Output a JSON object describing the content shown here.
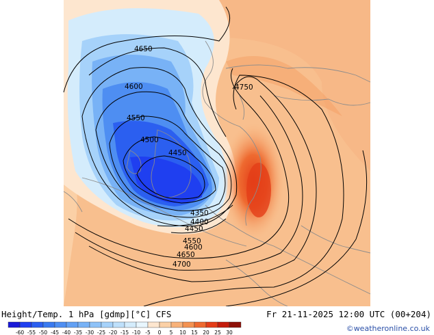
{
  "header": {
    "title": "Height/Temp. 1 hPa [gdmp][°C] CFS",
    "valid_time": "Fr 21-11-2025 12:00 UTC (00+204)",
    "credit": "©weatheronline.co.uk"
  },
  "map": {
    "contour_labels": [
      {
        "id": "c4650-top",
        "text": "4650"
      },
      {
        "id": "c4600-left",
        "text": "4600"
      },
      {
        "id": "c4550-left",
        "text": "4550"
      },
      {
        "id": "c4500-left",
        "text": "4500"
      },
      {
        "id": "c4450-center",
        "text": "4450"
      },
      {
        "id": "c4750-right",
        "text": "4750"
      },
      {
        "id": "c4350",
        "text": "4350"
      },
      {
        "id": "c4400",
        "text": "4400"
      },
      {
        "id": "c4450-bottom",
        "text": "4450"
      },
      {
        "id": "c4550-bottom",
        "text": "4550"
      },
      {
        "id": "c4600-bottom",
        "text": "4600"
      },
      {
        "id": "c4650-bottom",
        "text": "4650"
      },
      {
        "id": "c4700-bottom",
        "text": "4700"
      }
    ]
  },
  "legend": {
    "ticks": [
      "-60",
      "-55",
      "-50",
      "-45",
      "-40",
      "-35",
      "-30",
      "-25",
      "-20",
      "-15",
      "-10",
      "-5",
      "0",
      "5",
      "10",
      "15",
      "20",
      "25",
      "30"
    ],
    "colors": [
      "#1a1ad8",
      "#1f3ff0",
      "#2b5ff0",
      "#3a7af0",
      "#4e8ef2",
      "#62a0f4",
      "#78b2f6",
      "#8ec2f8",
      "#a6d2fa",
      "#bee0fb",
      "#d4ecfc",
      "#e8f6fe",
      "#fde6cf",
      "#fbd0a6",
      "#f8b27a",
      "#f39252",
      "#ee6a30",
      "#e43d18",
      "#c41c0c",
      "#8e1008"
    ]
  }
}
